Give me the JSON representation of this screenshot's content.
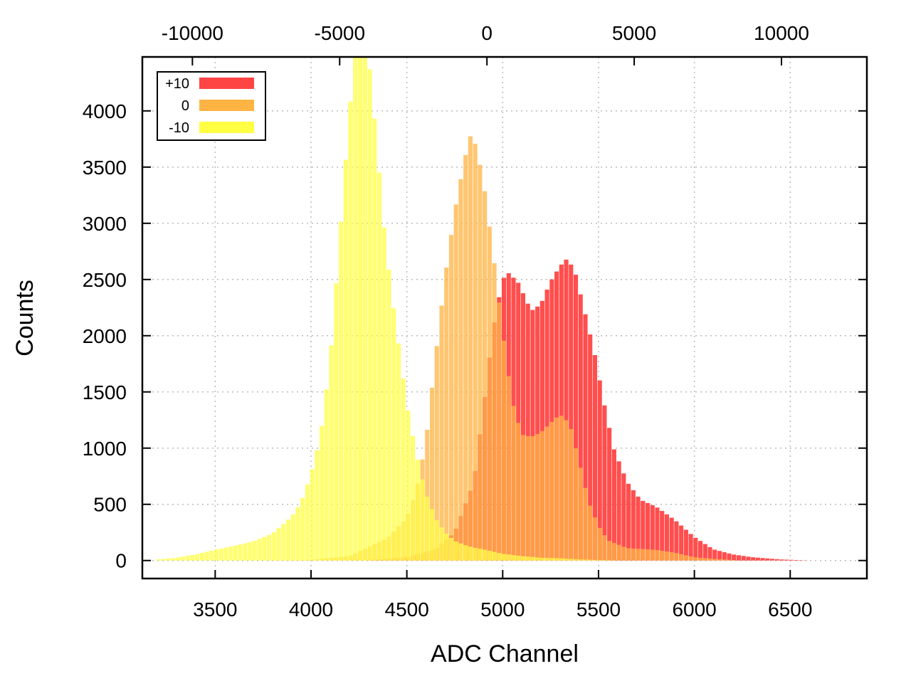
{
  "chart_data": {
    "type": "histogram",
    "title": "",
    "xlabel": "ADC Channel",
    "ylabel": "Counts",
    "xlim": [
      3120,
      6900
    ],
    "ylim": [
      -160,
      4480
    ],
    "x_ticks": [
      3500,
      4000,
      4500,
      5000,
      5500,
      6000,
      6500
    ],
    "x_tick_labels": [
      "3500",
      "4000",
      "4500",
      "5000",
      "5500",
      "6000",
      "6500"
    ],
    "x2_ticks": [
      -10000,
      -5000,
      0,
      5000,
      10000
    ],
    "x2_tick_labels": [
      "-10000",
      "-5000",
      "0",
      "5000",
      "10000"
    ],
    "x2_range": [
      -11700,
      12900
    ],
    "y_ticks": [
      0,
      500,
      1000,
      1500,
      2000,
      2500,
      3000,
      3500,
      4000
    ],
    "y_tick_labels": [
      "0",
      "500",
      "1000",
      "1500",
      "2000",
      "2500",
      "3000",
      "3500",
      "4000"
    ],
    "grid": true,
    "legend_position": "top-left",
    "bin_width": 25,
    "series": [
      {
        "name": "+10",
        "color": "#ff4444",
        "points": [
          [
            4300,
            0
          ],
          [
            4500,
            30
          ],
          [
            4650,
            100
          ],
          [
            4750,
            250
          ],
          [
            4850,
            700
          ],
          [
            4900,
            1350
          ],
          [
            4950,
            2050
          ],
          [
            5000,
            2500
          ],
          [
            5030,
            2560
          ],
          [
            5080,
            2480
          ],
          [
            5150,
            2220
          ],
          [
            5200,
            2280
          ],
          [
            5250,
            2480
          ],
          [
            5300,
            2620
          ],
          [
            5340,
            2690
          ],
          [
            5380,
            2560
          ],
          [
            5420,
            2280
          ],
          [
            5480,
            1850
          ],
          [
            5530,
            1400
          ],
          [
            5580,
            1000
          ],
          [
            5650,
            700
          ],
          [
            5720,
            540
          ],
          [
            5800,
            480
          ],
          [
            5900,
            360
          ],
          [
            6000,
            210
          ],
          [
            6100,
            100
          ],
          [
            6200,
            55
          ],
          [
            6300,
            30
          ],
          [
            6450,
            10
          ],
          [
            6600,
            0
          ]
        ]
      },
      {
        "name": "0",
        "color": "#ffb444",
        "points": [
          [
            3700,
            0
          ],
          [
            4000,
            5
          ],
          [
            4200,
            40
          ],
          [
            4400,
            200
          ],
          [
            4500,
            380
          ],
          [
            4550,
            620
          ],
          [
            4600,
            1050
          ],
          [
            4650,
            1800
          ],
          [
            4700,
            2520
          ],
          [
            4750,
            3100
          ],
          [
            4800,
            3550
          ],
          [
            4830,
            3780
          ],
          [
            4860,
            3700
          ],
          [
            4900,
            3380
          ],
          [
            4950,
            2750
          ],
          [
            5000,
            2050
          ],
          [
            5050,
            1420
          ],
          [
            5100,
            1120
          ],
          [
            5150,
            1100
          ],
          [
            5200,
            1140
          ],
          [
            5250,
            1220
          ],
          [
            5300,
            1300
          ],
          [
            5350,
            1220
          ],
          [
            5400,
            880
          ],
          [
            5450,
            520
          ],
          [
            5500,
            310
          ],
          [
            5550,
            180
          ],
          [
            5650,
            110
          ],
          [
            5800,
            95
          ],
          [
            5900,
            70
          ],
          [
            6000,
            30
          ],
          [
            6100,
            15
          ],
          [
            6250,
            0
          ]
        ]
      },
      {
        "name": "-10",
        "color": "#ffff44",
        "points": [
          [
            3200,
            10
          ],
          [
            3300,
            25
          ],
          [
            3400,
            55
          ],
          [
            3500,
            95
          ],
          [
            3600,
            130
          ],
          [
            3700,
            170
          ],
          [
            3800,
            240
          ],
          [
            3900,
            390
          ],
          [
            3950,
            520
          ],
          [
            4000,
            760
          ],
          [
            4050,
            1100
          ],
          [
            4100,
            1750
          ],
          [
            4150,
            2850
          ],
          [
            4200,
            3950
          ],
          [
            4230,
            4480
          ],
          [
            4260,
            4700
          ],
          [
            4300,
            4500
          ],
          [
            4340,
            3800
          ],
          [
            4380,
            3000
          ],
          [
            4420,
            2400
          ],
          [
            4460,
            1900
          ],
          [
            4500,
            1400
          ],
          [
            4550,
            950
          ],
          [
            4600,
            600
          ],
          [
            4650,
            380
          ],
          [
            4700,
            250
          ],
          [
            4750,
            175
          ],
          [
            4800,
            140
          ],
          [
            4850,
            115
          ],
          [
            4900,
            100
          ],
          [
            4950,
            80
          ],
          [
            5000,
            60
          ],
          [
            5100,
            40
          ],
          [
            5200,
            25
          ],
          [
            5300,
            20
          ],
          [
            5400,
            10
          ],
          [
            5500,
            5
          ],
          [
            5600,
            0
          ]
        ]
      }
    ]
  }
}
